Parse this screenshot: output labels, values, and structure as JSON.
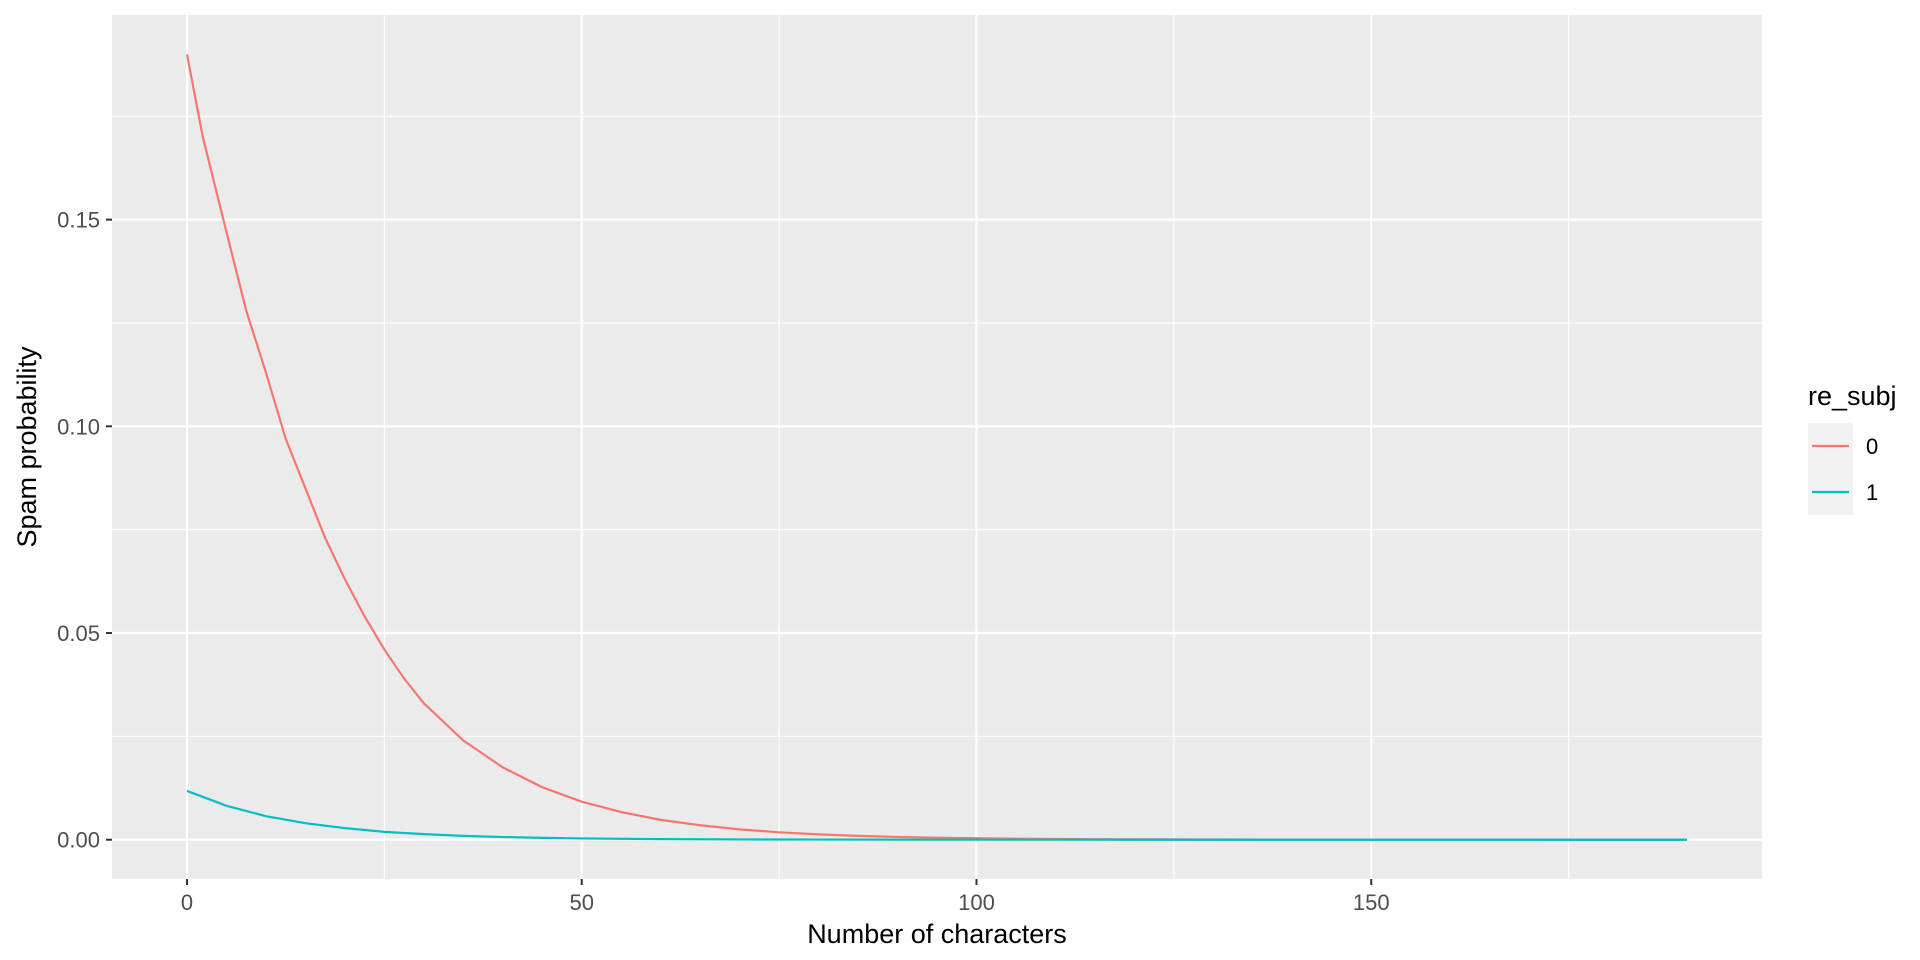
{
  "chart_data": {
    "type": "line",
    "title": "",
    "xlabel": "Number of characters",
    "ylabel": "Spam probability",
    "xlim": [
      -9.5,
      199.5
    ],
    "ylim": [
      -0.0095,
      0.1995
    ],
    "x_ticks": [
      0,
      50,
      100,
      150
    ],
    "x_tick_labels": [
      "0",
      "50",
      "100",
      "150"
    ],
    "y_ticks": [
      0.0,
      0.05,
      0.1,
      0.15
    ],
    "y_tick_labels": [
      "0.00",
      "0.05",
      "0.10",
      "0.15"
    ],
    "grid": true,
    "legend": {
      "title": "re_subj",
      "position": "right"
    },
    "panel_background": "#EBEBEB",
    "grid_color": "#FFFFFF",
    "series": [
      {
        "name": "0",
        "color": "#F8766D",
        "x": [
          0,
          2,
          5,
          7.5,
          10,
          12.5,
          15,
          17.5,
          20,
          22.5,
          25,
          27.5,
          30,
          35,
          40,
          45,
          50,
          55,
          60,
          65,
          70,
          75,
          80,
          85,
          90,
          95,
          100,
          105,
          110,
          115,
          120,
          130,
          140,
          150,
          160,
          170,
          180,
          190
        ],
        "y": [
          0.19,
          0.17,
          0.147,
          0.128,
          0.113,
          0.097,
          0.085,
          0.073,
          0.063,
          0.054,
          0.046,
          0.039,
          0.033,
          0.024,
          0.0175,
          0.0127,
          0.0092,
          0.0067,
          0.0048,
          0.0035,
          0.0025,
          0.0018,
          0.0013,
          0.00094,
          0.00068,
          0.00049,
          0.00035,
          0.00025,
          0.00018,
          0.00013,
          9.5e-05,
          5e-05,
          2.6e-05,
          1.4e-05,
          7.2e-06,
          3.8e-06,
          2e-06,
          1e-06
        ]
      },
      {
        "name": "1",
        "color": "#00BFC4",
        "x": [
          0,
          5,
          10,
          15,
          20,
          25,
          30,
          35,
          40,
          45,
          50,
          55,
          60,
          70,
          80,
          90,
          100,
          110,
          120,
          130,
          140,
          150,
          160,
          170,
          180,
          190
        ],
        "y": [
          0.0118,
          0.0082,
          0.0057,
          0.004,
          0.0028,
          0.0019,
          0.00135,
          0.00094,
          0.00065,
          0.00045,
          0.00031,
          0.00022,
          0.00015,
          7.3e-05,
          3.5e-05,
          1.7e-05,
          8.2e-06,
          4e-06,
          1.9e-06,
          9e-07,
          4.4e-07,
          2.1e-07,
          1e-07,
          5e-08,
          2e-08,
          1e-08
        ]
      }
    ]
  }
}
